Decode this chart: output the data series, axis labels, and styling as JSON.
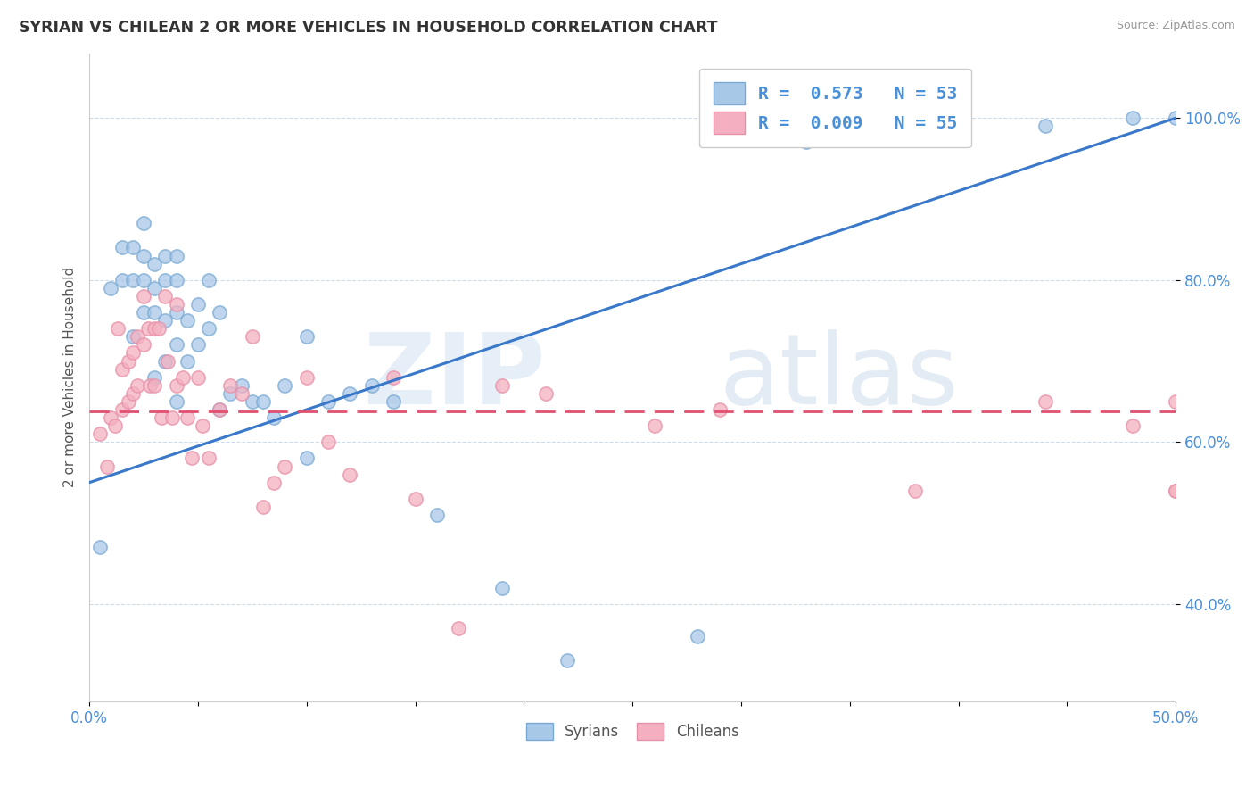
{
  "title": "SYRIAN VS CHILEAN 2 OR MORE VEHICLES IN HOUSEHOLD CORRELATION CHART",
  "source": "Source: ZipAtlas.com",
  "ylabel": "2 or more Vehicles in Household",
  "ytick_values": [
    0.4,
    0.6,
    0.8,
    1.0
  ],
  "xmin": 0.0,
  "xmax": 0.5,
  "ymin": 0.28,
  "ymax": 1.08,
  "legend_line1": "R =  0.573   N = 53",
  "legend_line2": "R =  0.009   N = 55",
  "syrian_color": "#a8c8e8",
  "chilean_color": "#f4b0c0",
  "syrian_edge_color": "#7aaad4",
  "chilean_edge_color": "#e890a8",
  "syrian_line_color": "#3a78c9",
  "chilean_line_color": "#e05070",
  "watermark_zip": "ZIP",
  "watermark_atlas": "atlas",
  "legend_syrian_color": "#a8c8e8",
  "legend_chilean_color": "#f4b0c0",
  "syrian_x": [
    0.005,
    0.01,
    0.015,
    0.015,
    0.02,
    0.02,
    0.02,
    0.025,
    0.025,
    0.025,
    0.025,
    0.03,
    0.03,
    0.03,
    0.03,
    0.035,
    0.035,
    0.035,
    0.035,
    0.04,
    0.04,
    0.04,
    0.04,
    0.04,
    0.045,
    0.045,
    0.05,
    0.05,
    0.055,
    0.055,
    0.06,
    0.06,
    0.065,
    0.07,
    0.075,
    0.08,
    0.085,
    0.09,
    0.1,
    0.1,
    0.11,
    0.12,
    0.13,
    0.14,
    0.16,
    0.19,
    0.22,
    0.28,
    0.33,
    0.38,
    0.44,
    0.48,
    0.5
  ],
  "syrian_y": [
    0.47,
    0.79,
    0.84,
    0.8,
    0.84,
    0.8,
    0.73,
    0.87,
    0.83,
    0.8,
    0.76,
    0.82,
    0.79,
    0.76,
    0.68,
    0.83,
    0.8,
    0.75,
    0.7,
    0.83,
    0.8,
    0.76,
    0.72,
    0.65,
    0.75,
    0.7,
    0.77,
    0.72,
    0.8,
    0.74,
    0.76,
    0.64,
    0.66,
    0.67,
    0.65,
    0.65,
    0.63,
    0.67,
    0.73,
    0.58,
    0.65,
    0.66,
    0.67,
    0.65,
    0.51,
    0.42,
    0.33,
    0.36,
    0.97,
    1.0,
    0.99,
    1.0,
    1.0
  ],
  "chilean_x": [
    0.005,
    0.008,
    0.01,
    0.012,
    0.013,
    0.015,
    0.015,
    0.018,
    0.018,
    0.02,
    0.02,
    0.022,
    0.022,
    0.025,
    0.025,
    0.027,
    0.028,
    0.03,
    0.03,
    0.032,
    0.033,
    0.035,
    0.036,
    0.038,
    0.04,
    0.04,
    0.043,
    0.045,
    0.047,
    0.05,
    0.052,
    0.055,
    0.06,
    0.065,
    0.07,
    0.075,
    0.08,
    0.085,
    0.09,
    0.1,
    0.11,
    0.12,
    0.14,
    0.15,
    0.17,
    0.19,
    0.21,
    0.26,
    0.29,
    0.38,
    0.44,
    0.48,
    0.5,
    0.5,
    0.5
  ],
  "chilean_y": [
    0.61,
    0.57,
    0.63,
    0.62,
    0.74,
    0.69,
    0.64,
    0.7,
    0.65,
    0.71,
    0.66,
    0.73,
    0.67,
    0.78,
    0.72,
    0.74,
    0.67,
    0.74,
    0.67,
    0.74,
    0.63,
    0.78,
    0.7,
    0.63,
    0.77,
    0.67,
    0.68,
    0.63,
    0.58,
    0.68,
    0.62,
    0.58,
    0.64,
    0.67,
    0.66,
    0.73,
    0.52,
    0.55,
    0.57,
    0.68,
    0.6,
    0.56,
    0.68,
    0.53,
    0.37,
    0.67,
    0.66,
    0.62,
    0.64,
    0.54,
    0.65,
    0.62,
    0.54,
    0.65,
    0.54
  ]
}
